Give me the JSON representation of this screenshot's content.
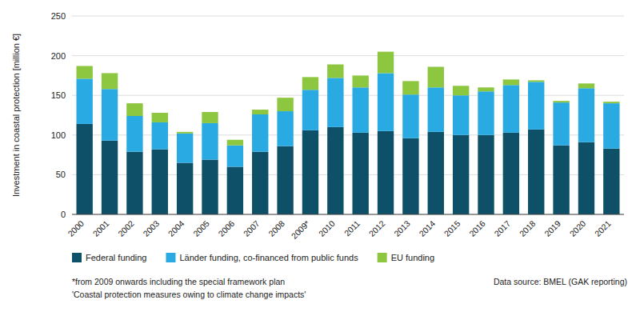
{
  "chart_data": {
    "type": "bar",
    "stacked": true,
    "y_label": "Investment in coastal protection [million €]",
    "categories": [
      "2000",
      "2001",
      "2002",
      "2003",
      "2004",
      "2005",
      "2006",
      "2007",
      "2008",
      "2009*",
      "2010",
      "2011",
      "2012",
      "2013",
      "2014",
      "2015",
      "2016",
      "2017",
      "2018",
      "2019",
      "2020",
      "2021"
    ],
    "series": [
      {
        "name": "Federal funding",
        "color": "#0d5068",
        "values": [
          114,
          93,
          79,
          82,
          65,
          69,
          60,
          79,
          86,
          106,
          110,
          103,
          105,
          96,
          104,
          100,
          100,
          103,
          107,
          87,
          91,
          83
        ]
      },
      {
        "name": "Länder funding, co-financed from public funds",
        "color": "#29aae2",
        "values": [
          57,
          65,
          45,
          34,
          37,
          46,
          27,
          47,
          44,
          51,
          62,
          57,
          73,
          55,
          56,
          50,
          55,
          60,
          60,
          54,
          68,
          57
        ]
      },
      {
        "name": "EU funding",
        "color": "#8dc63f",
        "values": [
          16,
          20,
          16,
          12,
          2,
          14,
          7,
          6,
          17,
          16,
          17,
          15,
          27,
          17,
          26,
          12,
          5,
          7,
          2,
          2,
          6,
          2
        ]
      }
    ],
    "ylim": [
      0,
      250
    ],
    "yticks": [
      0,
      50,
      100,
      150,
      200,
      250
    ],
    "grid": true,
    "legend": "bottom",
    "annotations": [
      "*from 2009 onwards including the special framework plan",
      "'Coastal protection measures owing to climate change impacts'",
      "Data source: BMEL (GAK reporting)"
    ]
  }
}
